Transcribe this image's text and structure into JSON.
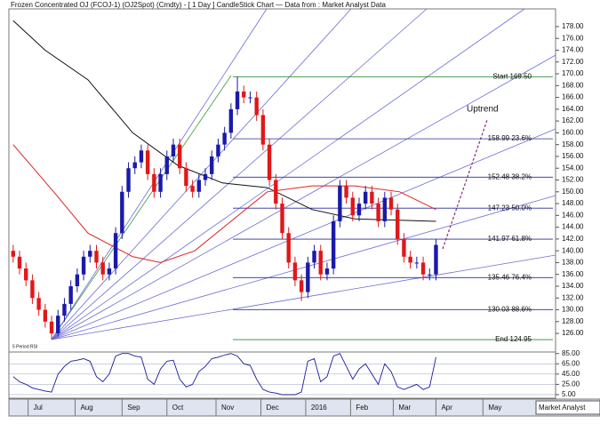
{
  "chart_data": {
    "type": "candlestick",
    "title": "Frozen Concentrated OJ (FCOJ-1) (OJ2Spot) (Cmdty) -  [ 1 Day ] CandleStick Chart — Data from : Market Analyst Data",
    "up_color": "#1a1aa8",
    "down_color": "#e01818",
    "x": [
      0,
      3,
      6,
      9,
      12,
      15,
      18,
      21,
      24,
      27,
      30,
      33,
      36,
      39,
      42,
      45,
      48,
      51,
      54,
      57,
      60,
      63,
      66,
      69,
      72,
      75,
      78,
      81,
      84,
      87,
      90,
      93,
      96,
      99,
      102,
      105,
      108,
      111,
      114,
      117,
      120,
      123,
      126,
      129,
      132,
      135,
      138,
      141,
      144,
      147,
      150,
      153,
      156,
      159,
      162,
      165,
      168,
      171,
      174,
      177,
      180,
      183,
      186,
      189,
      192,
      195,
      198
    ],
    "open": [
      140,
      139,
      137,
      135,
      132,
      130,
      128,
      126,
      129,
      131,
      134,
      136,
      139,
      140,
      138,
      136,
      137,
      143,
      150,
      154,
      155,
      157,
      153,
      150,
      153,
      156,
      158,
      154,
      151,
      150,
      152,
      153,
      156,
      158,
      160,
      164,
      167,
      166,
      166,
      163,
      158,
      152,
      148,
      143,
      138,
      135,
      133,
      138,
      140,
      136,
      137,
      145,
      151,
      149,
      146,
      148,
      150,
      148,
      145,
      149,
      147,
      142,
      139,
      138,
      138,
      136,
      136
    ],
    "high": [
      141,
      140,
      138,
      136,
      133,
      131,
      129,
      130,
      132,
      135,
      137,
      140,
      141,
      141,
      139,
      138,
      144,
      151,
      155,
      156,
      158,
      158,
      154,
      154,
      157,
      159,
      159,
      155,
      152,
      153,
      154,
      157,
      159,
      161,
      165,
      169.5,
      168,
      167,
      167,
      164,
      159,
      153,
      149,
      144,
      139,
      136,
      139,
      141,
      141,
      138,
      146,
      152,
      152,
      150,
      149,
      151,
      151,
      149,
      150,
      150,
      148,
      143,
      140,
      139,
      139,
      137,
      142
    ],
    "low": [
      138,
      136,
      134,
      131,
      129,
      127,
      125,
      125.5,
      128,
      130,
      133,
      135,
      138,
      137,
      135,
      135,
      136,
      142,
      149,
      153,
      154,
      152,
      149,
      149,
      152,
      155,
      153,
      150,
      149,
      149,
      151,
      152,
      155,
      157,
      159,
      163,
      165,
      165,
      162,
      157,
      151,
      147,
      142,
      137,
      134,
      131.5,
      132,
      137,
      135,
      135,
      136,
      144,
      148,
      145,
      145,
      147,
      147,
      144,
      144,
      146,
      141,
      138,
      137,
      137,
      135,
      135,
      135
    ],
    "close": [
      139,
      137,
      135,
      132,
      130,
      128,
      126,
      129,
      131,
      134,
      136,
      139,
      140,
      138,
      136,
      137,
      143,
      150,
      154,
      155,
      157,
      153,
      150,
      153,
      156,
      158,
      154,
      151,
      150,
      152,
      153,
      156,
      158,
      160,
      164,
      167,
      166,
      166,
      163,
      158,
      152,
      148,
      143,
      138,
      135,
      133,
      138,
      140,
      136,
      137,
      145,
      151,
      149,
      146,
      148,
      150,
      148,
      145,
      149,
      147,
      142,
      139,
      138,
      138,
      136,
      136,
      141
    ],
    "xlim": [
      -2,
      254
    ],
    "xticks": [
      {
        "value": 7,
        "label": "Jul"
      },
      {
        "value": 29,
        "label": "Aug"
      },
      {
        "value": 51,
        "label": "Sep"
      },
      {
        "value": 72,
        "label": "Oct"
      },
      {
        "value": 95,
        "label": "Nov"
      },
      {
        "value": 116,
        "label": "Dec"
      },
      {
        "value": 137,
        "label": "2016"
      },
      {
        "value": 158,
        "label": "Feb"
      },
      {
        "value": 178,
        "label": "Mar"
      },
      {
        "value": 198,
        "label": "Apr"
      },
      {
        "value": 220,
        "label": "May"
      }
    ],
    "ylim": [
      123,
      181
    ],
    "yticks": [
      {
        "value": 126,
        "label": "126.00"
      },
      {
        "value": 128,
        "label": "128.00"
      },
      {
        "value": 130,
        "label": "130.00"
      },
      {
        "value": 132,
        "label": "132.00"
      },
      {
        "value": 134,
        "label": "134.00"
      },
      {
        "value": 136,
        "label": "136.00"
      },
      {
        "value": 138,
        "label": "138.00"
      },
      {
        "value": 140,
        "label": "140.00"
      },
      {
        "value": 142,
        "label": "142.00"
      },
      {
        "value": 144,
        "label": "144.00"
      },
      {
        "value": 146,
        "label": "146.00"
      },
      {
        "value": 148,
        "label": "148.00"
      },
      {
        "value": 150,
        "label": "150.00"
      },
      {
        "value": 152,
        "label": "152.00"
      },
      {
        "value": 154,
        "label": "154.00"
      },
      {
        "value": 156,
        "label": "156.00"
      },
      {
        "value": 158,
        "label": "158.00"
      },
      {
        "value": 160,
        "label": "160.00"
      },
      {
        "value": 162,
        "label": "162.00"
      },
      {
        "value": 164,
        "label": "164.00"
      },
      {
        "value": 166,
        "label": "166.00"
      },
      {
        "value": 168,
        "label": "168.00"
      },
      {
        "value": 170,
        "label": "170.00"
      },
      {
        "value": 172,
        "label": "172.00"
      },
      {
        "value": 174,
        "label": "174.00"
      },
      {
        "value": 176,
        "label": "176.00"
      },
      {
        "value": 178,
        "label": "178.00"
      }
    ],
    "overlays": [
      {
        "color": "#111111",
        "x": [
          0,
          15,
          35,
          56,
          77,
          98,
          119,
          140,
          160,
          198
        ],
        "values": [
          179,
          174,
          169,
          160,
          154.5,
          151.5,
          150.7,
          147,
          145.4,
          145
        ]
      },
      {
        "color": "#e02020",
        "x": [
          0,
          19,
          35,
          56,
          69,
          85,
          102,
          119,
          140,
          160,
          181,
          198
        ],
        "values": [
          158,
          150,
          143,
          139,
          138,
          140,
          145,
          150,
          151,
          151,
          150,
          147
        ]
      }
    ],
    "fib_levels": [
      {
        "value": 169.5,
        "label": "Start 169.50",
        "color": "#2a8a2a"
      },
      {
        "value": 158.99,
        "label": "158.99 23.6%",
        "color": "#2a2a9a"
      },
      {
        "value": 152.48,
        "label": "152.48 38.2%",
        "color": "#2a2a9a"
      },
      {
        "value": 147.23,
        "label": "147.23 50.0%",
        "color": "#2a2a9a"
      },
      {
        "value": 141.97,
        "label": "141.97 61.8%",
        "color": "#2a2a9a"
      },
      {
        "value": 135.46,
        "label": "135.46 76.4%",
        "color": "#2a2a9a"
      },
      {
        "value": 130.03,
        "label": "130.03 88.6%",
        "color": "#2a2a9a"
      },
      {
        "value": 124.95,
        "label": "End 124.95",
        "color": "#2a8a2a"
      }
    ],
    "annotation": "Uptrend",
    "rsi": {
      "label": "5 Period RSI",
      "color": "#1a1a9a",
      "values": [
        40,
        30,
        25,
        18,
        15,
        12,
        10,
        45,
        60,
        70,
        72,
        75,
        70,
        40,
        30,
        45,
        80,
        85,
        85,
        80,
        78,
        35,
        25,
        55,
        70,
        72,
        35,
        20,
        25,
        50,
        60,
        75,
        78,
        82,
        85,
        80,
        65,
        62,
        35,
        15,
        10,
        8,
        5,
        5,
        5,
        10,
        70,
        75,
        30,
        40,
        80,
        85,
        60,
        35,
        55,
        65,
        45,
        25,
        65,
        50,
        20,
        15,
        20,
        25,
        15,
        20,
        78
      ],
      "ylim": [
        -2,
        88
      ],
      "yticks": [
        {
          "value": 85,
          "label": "85.00"
        },
        {
          "value": 65,
          "label": "65.00"
        },
        {
          "value": 45,
          "label": "45.00"
        },
        {
          "value": 25,
          "label": "25.00"
        },
        {
          "value": 5,
          "label": "5.00"
        }
      ]
    },
    "footer": "Market Analyst"
  }
}
